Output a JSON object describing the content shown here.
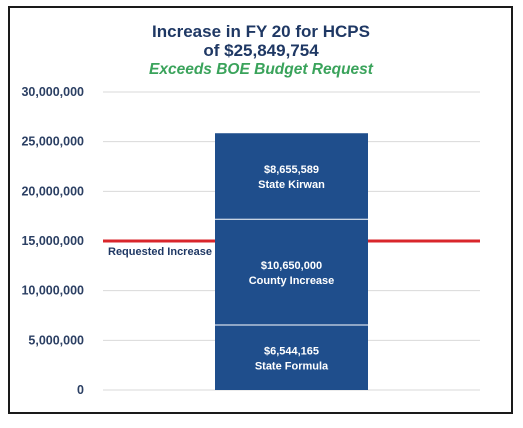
{
  "chart_data": {
    "type": "bar",
    "title_line1": "Increase in FY 20 for HCPS",
    "title_line2": "of $25,849,754",
    "subtitle": "Exceeds BOE Budget Request",
    "ylim": [
      0,
      30000000
    ],
    "yticks": [
      0,
      5000000,
      10000000,
      15000000,
      20000000,
      25000000,
      30000000
    ],
    "ytick_labels": [
      "0",
      "5,000,000",
      "10,000,000",
      "15,000,000",
      "20,000,000",
      "25,000,000",
      "30,000,000"
    ],
    "grid": true,
    "stack_order": "bottom-to-top",
    "series": [
      {
        "name": "State Formula",
        "value": 6544165,
        "label": "$6,544,165"
      },
      {
        "name": "County Increase",
        "value": 10650000,
        "label": "$10,650,000"
      },
      {
        "name": "State Kirwan",
        "value": 8655589,
        "label": "$8,655,589"
      }
    ],
    "reference_line": {
      "label": "Requested Increase",
      "value": 15000000
    },
    "colors": {
      "bar": "#1f4e8c",
      "reference": "#d9262b",
      "title": "#1f3864",
      "subtitle": "#3aa35b",
      "grid": "#d9d9d9"
    }
  }
}
